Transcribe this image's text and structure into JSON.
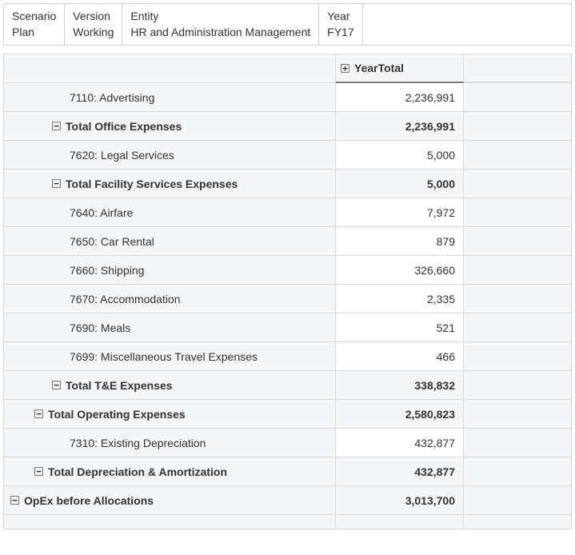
{
  "pov": [
    {
      "label": "Scenario",
      "value": "Plan"
    },
    {
      "label": "Version",
      "value": "Working"
    },
    {
      "label": "Entity",
      "value": "HR and Administration Management"
    },
    {
      "label": "Year",
      "value": "FY17"
    }
  ],
  "header": {
    "col1": "",
    "col2_icon": "+",
    "col2_text": "YearTotal"
  },
  "rows": [
    {
      "indent": 3,
      "bold": false,
      "icon": "",
      "label": "7110: Advertising",
      "value": "2,236,991"
    },
    {
      "indent": 2,
      "bold": true,
      "icon": "−",
      "label": "Total Office Expenses",
      "value": "2,236,991"
    },
    {
      "indent": 3,
      "bold": false,
      "icon": "",
      "label": "7620: Legal Services",
      "value": "5,000"
    },
    {
      "indent": 2,
      "bold": true,
      "icon": "−",
      "label": "Total Facility Services Expenses",
      "value": "5,000"
    },
    {
      "indent": 3,
      "bold": false,
      "icon": "",
      "label": "7640: Airfare",
      "value": "7,972"
    },
    {
      "indent": 3,
      "bold": false,
      "icon": "",
      "label": "7650: Car Rental",
      "value": "879"
    },
    {
      "indent": 3,
      "bold": false,
      "icon": "",
      "label": "7660: Shipping",
      "value": "326,660"
    },
    {
      "indent": 3,
      "bold": false,
      "icon": "",
      "label": "7670: Accommodation",
      "value": "2,335"
    },
    {
      "indent": 3,
      "bold": false,
      "icon": "",
      "label": "7690: Meals",
      "value": "521"
    },
    {
      "indent": 3,
      "bold": false,
      "icon": "",
      "label": "7699: Miscellaneous Travel Expenses",
      "value": "466"
    },
    {
      "indent": 2,
      "bold": true,
      "icon": "−",
      "label": "Total T&E Expenses",
      "value": "338,832"
    },
    {
      "indent": 1,
      "bold": true,
      "icon": "−",
      "label": "Total Operating Expenses",
      "value": "2,580,823"
    },
    {
      "indent": 3,
      "bold": false,
      "icon": "",
      "label": "7310: Existing Depreciation",
      "value": "432,877"
    },
    {
      "indent": 1,
      "bold": true,
      "icon": "−",
      "label": "Total Depreciation & Amortization",
      "value": "432,877"
    },
    {
      "indent": 0,
      "bold": true,
      "icon": "−",
      "label": "OpEx before Allocations",
      "value": "3,013,700"
    }
  ]
}
